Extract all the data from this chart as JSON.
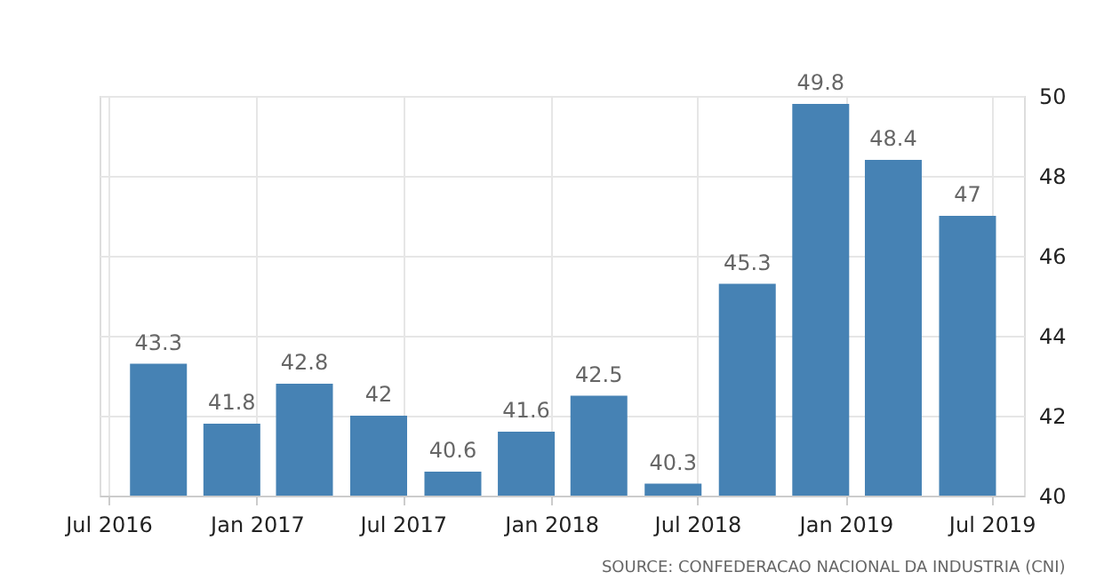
{
  "chart_data": {
    "type": "bar",
    "x": [
      "2016-09",
      "2016-12",
      "2017-03",
      "2017-06",
      "2017-09",
      "2017-12",
      "2018-03",
      "2018-06",
      "2018-09",
      "2018-12",
      "2019-03",
      "2019-06"
    ],
    "values": [
      43.3,
      41.8,
      42.8,
      42,
      40.6,
      41.6,
      42.5,
      40.3,
      45.3,
      49.8,
      48.4,
      47
    ],
    "color": "#4682b4",
    "data_labels": true,
    "xlim": [
      "2016-06-20",
      "2019-08-10"
    ],
    "xticks": [
      {
        "value": "2016-07",
        "label": "Jul 2016"
      },
      {
        "value": "2017-01",
        "label": "Jan 2017"
      },
      {
        "value": "2017-07",
        "label": "Jul 2017"
      },
      {
        "value": "2018-01",
        "label": "Jan 2018"
      },
      {
        "value": "2018-07",
        "label": "Jul 2018"
      },
      {
        "value": "2019-01",
        "label": "Jan 2019"
      },
      {
        "value": "2019-07",
        "label": "Jul 2019"
      }
    ],
    "ylim": [
      40,
      50
    ],
    "yticks": [
      40,
      42,
      44,
      46,
      48,
      50
    ],
    "grid": true,
    "annotations": [
      "SOURCE: CONFEDERACAO NACIONAL DA INDUSTRIA (CNI)"
    ]
  }
}
